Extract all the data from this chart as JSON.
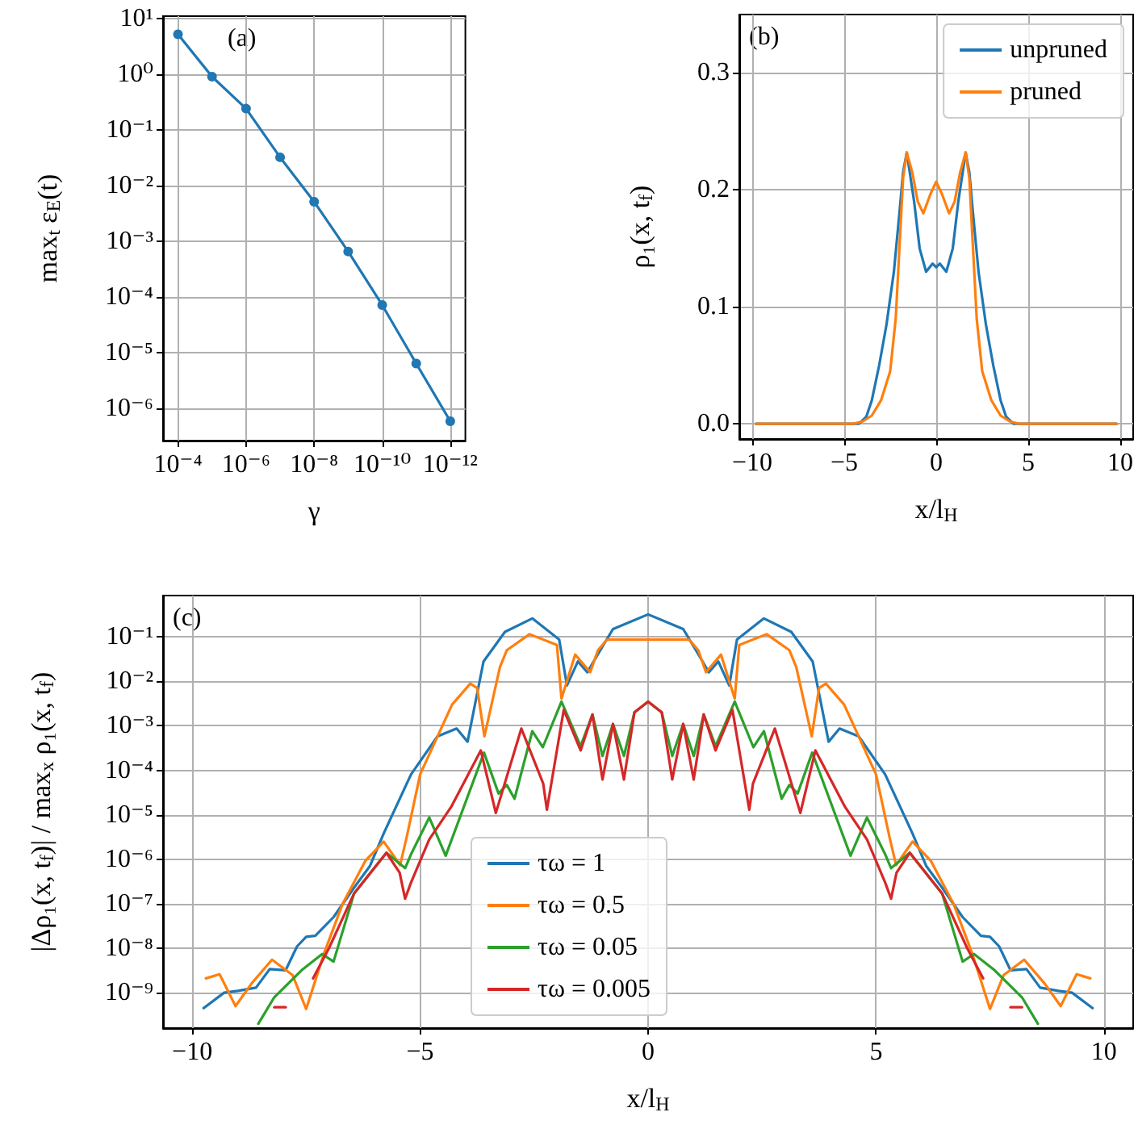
{
  "chart_data": [
    {
      "type": "line",
      "annotations": [
        "(a)"
      ],
      "xlabel": "γ",
      "ylabel": "max$_{t}$ ε$_{E}$(t)",
      "log": "xy",
      "grid": true,
      "marker": "circle",
      "x": [
        0.0001,
        1e-05,
        1e-06,
        1e-07,
        1e-08,
        1e-09,
        1e-10,
        1e-11,
        1e-12
      ],
      "xlim": [
        0.000275,
        3.6e-13
      ],
      "ylim": [
        2.6e-07,
        11
      ],
      "xticks": [
        {
          "value": 0.0001,
          "label": "10⁻⁴"
        },
        {
          "value": 1e-06,
          "label": "10⁻⁶"
        },
        {
          "value": 1e-08,
          "label": "10⁻⁸"
        },
        {
          "value": 1e-10,
          "label": "10⁻¹⁰"
        },
        {
          "value": 1e-12,
          "label": "10⁻¹²"
        }
      ],
      "yticks": [
        {
          "value": 1e-06,
          "label": "10⁻⁶"
        },
        {
          "value": 1e-05,
          "label": "10⁻⁵"
        },
        {
          "value": 0.0001,
          "label": "10⁻⁴"
        },
        {
          "value": 0.001,
          "label": "10⁻³"
        },
        {
          "value": 0.01,
          "label": "10⁻²"
        },
        {
          "value": 0.1,
          "label": "10⁻¹"
        },
        {
          "value": 1,
          "label": "10⁰"
        },
        {
          "value": 10,
          "label": "10¹"
        }
      ],
      "series": [
        {
          "color": "#1f77b4",
          "values": [
            5.2,
            0.9,
            0.24,
            0.032,
            0.0051,
            0.00065,
            7.1e-05,
            6.3e-06,
            5.8e-07
          ]
        }
      ]
    },
    {
      "type": "line",
      "annotations": [
        "(b)"
      ],
      "xlabel": "x/l$_{H}$",
      "ylabel": "ρ₁(x, t$_{f}$)",
      "grid": true,
      "legend": "top right",
      "xlim": [
        -10.7,
        10.7
      ],
      "ylim": [
        -0.013,
        0.35
      ],
      "xticks": [
        {
          "value": -10,
          "label": "−10"
        },
        {
          "value": -5,
          "label": "−5"
        },
        0,
        5,
        10
      ],
      "yticks": [
        {
          "value": 0,
          "label": "0.0"
        },
        0.1,
        0.2,
        0.3
      ],
      "series": [
        {
          "name": "unpruned",
          "color": "#1f77b4",
          "x": [
            -9.8,
            -5,
            -4.2,
            -3.8,
            -3.5,
            -3.1,
            -2.7,
            -2.3,
            -2.0,
            -1.8,
            -1.6,
            -1.2,
            -0.9,
            -0.55,
            -0.2,
            0,
            0.2,
            0.55,
            0.9,
            1.2,
            1.6,
            1.8,
            2.0,
            2.3,
            2.7,
            3.1,
            3.5,
            3.8,
            4.2,
            5,
            9.8
          ],
          "values": [
            0,
            0,
            0,
            0.006,
            0.02,
            0.05,
            0.085,
            0.13,
            0.18,
            0.215,
            0.232,
            0.19,
            0.15,
            0.13,
            0.137,
            0.134,
            0.137,
            0.13,
            0.15,
            0.19,
            0.232,
            0.215,
            0.18,
            0.13,
            0.085,
            0.05,
            0.02,
            0.006,
            0,
            0,
            0
          ]
        },
        {
          "name": "pruned",
          "color": "#ff7f0e",
          "x": [
            -9.8,
            -4.5,
            -4.0,
            -3.5,
            -3.0,
            -2.5,
            -2.2,
            -2.0,
            -1.8,
            -1.6,
            -1.3,
            -1.0,
            -0.7,
            -0.3,
            0,
            0.3,
            0.7,
            1.0,
            1.3,
            1.6,
            1.8,
            2.0,
            2.2,
            2.5,
            3.0,
            3.5,
            4.0,
            4.5,
            9.8
          ],
          "values": [
            0,
            0,
            0.002,
            0.007,
            0.02,
            0.045,
            0.09,
            0.15,
            0.21,
            0.232,
            0.215,
            0.19,
            0.18,
            0.197,
            0.207,
            0.197,
            0.18,
            0.19,
            0.215,
            0.232,
            0.21,
            0.15,
            0.09,
            0.045,
            0.02,
            0.007,
            0.002,
            0,
            0
          ]
        }
      ]
    },
    {
      "type": "line",
      "annotations": [
        "(c)"
      ],
      "xlabel": "x/l$_{H}$",
      "ylabel": "|Δρ₁(x, t$_{f}$)| / max$_{x}$ ρ₁(x, t$_{f}$)",
      "log": "y",
      "grid": true,
      "legend": "bottom",
      "xlim": [
        -10.64,
        10.64
      ],
      "ylim": [
        1.6e-10,
        0.85
      ],
      "xticks": [
        {
          "value": -10,
          "label": "−10"
        },
        {
          "value": -5,
          "label": "−5"
        },
        0,
        5,
        10
      ],
      "yticks": [
        {
          "value": 1e-09,
          "label": "10⁻⁹"
        },
        {
          "value": 1e-08,
          "label": "10⁻⁸"
        },
        {
          "value": 1e-07,
          "label": "10⁻⁷"
        },
        {
          "value": 1e-06,
          "label": "10⁻⁶"
        },
        {
          "value": 1e-05,
          "label": "10⁻⁵"
        },
        {
          "value": 0.0001,
          "label": "10⁻⁴"
        },
        {
          "value": 0.001,
          "label": "10⁻³"
        },
        {
          "value": 0.01,
          "label": "10⁻²"
        },
        {
          "value": 0.1,
          "label": "10⁻¹"
        }
      ],
      "series": [
        {
          "name": "τω = 1",
          "color": "#1f77b4",
          "x": [
            -9.75,
            -9.3,
            -9.0,
            -8.6,
            -8.3,
            -7.95,
            -7.7,
            -7.5,
            -7.3,
            -6.9,
            -6.45,
            -6.1,
            -5.8,
            -5.2,
            -4.62,
            -4.2,
            -3.96,
            -3.61,
            -3.14,
            -2.54,
            -1.95,
            -1.78,
            -1.54,
            -1.33,
            -1.12,
            -0.77,
            0,
            0.77,
            1.12,
            1.33,
            1.54,
            1.78,
            1.95,
            2.54,
            3.14,
            3.61,
            3.96,
            4.2,
            4.62,
            5.2,
            5.8,
            6.1,
            6.45,
            6.9,
            7.3,
            7.5,
            7.7,
            7.95,
            8.3,
            8.6,
            9.0,
            9.3,
            9.75
          ],
          "values": [
            4.5e-10,
            1e-09,
            1.1e-09,
            1.3e-09,
            3.4e-09,
            3.2e-09,
            1.1e-08,
            1.8e-08,
            1.9e-08,
            5e-08,
            2.3e-07,
            7.1e-07,
            3.8e-06,
            8.1e-05,
            0.00058,
            0.00087,
            0.00044,
            0.028,
            0.13,
            0.26,
            0.087,
            0.0081,
            0.028,
            0.016,
            0.038,
            0.15,
            0.32,
            0.15,
            0.038,
            0.016,
            0.028,
            0.0081,
            0.087,
            0.26,
            0.13,
            0.028,
            0.00044,
            0.00087,
            0.00058,
            8.1e-05,
            3.8e-06,
            7.1e-07,
            2.3e-07,
            5e-08,
            1.9e-08,
            1.8e-08,
            1.1e-08,
            3.2e-09,
            3.4e-09,
            1.3e-09,
            1.1e-09,
            1e-09,
            4.5e-10
          ]
        },
        {
          "name": "τω = 0.5",
          "color": "#ff7f0e",
          "x": [
            -9.7,
            -9.4,
            -9.05,
            -8.7,
            -8.25,
            -7.8,
            -7.5,
            -7.1,
            -6.7,
            -6.2,
            -5.8,
            -5.44,
            -5.3,
            -5.0,
            -4.3,
            -3.9,
            -3.75,
            -3.59,
            -3.25,
            -3.1,
            -2.6,
            -2.0,
            -1.9,
            -1.6,
            -1.27,
            -1.1,
            -0.9,
            0,
            0.9,
            1.1,
            1.27,
            1.6,
            1.9,
            2.0,
            2.6,
            3.1,
            3.25,
            3.59,
            3.75,
            3.9,
            4.3,
            5.0,
            5.3,
            5.44,
            5.8,
            6.2,
            6.7,
            7.1,
            7.5,
            7.8,
            8.25,
            8.7,
            9.05,
            9.4,
            9.7
          ],
          "values": [
            2.1e-09,
            2.6e-09,
            5e-10,
            1.6e-09,
            5.5e-09,
            2.5e-09,
            4.3e-10,
            8.1e-09,
            1e-07,
            9.3e-07,
            2.5e-06,
            7.4e-07,
            3e-06,
            8.1e-05,
            0.003,
            0.0089,
            0.0071,
            0.00058,
            0.021,
            0.05,
            0.115,
            0.066,
            0.0041,
            0.04,
            0.016,
            0.05,
            0.087,
            0.087,
            0.087,
            0.05,
            0.016,
            0.04,
            0.0041,
            0.066,
            0.115,
            0.05,
            0.021,
            0.00058,
            0.0071,
            0.0089,
            0.003,
            8.1e-05,
            3e-06,
            7.4e-07,
            2.5e-06,
            9.3e-07,
            1e-07,
            8.1e-09,
            4.3e-10,
            2.5e-09,
            5.5e-09,
            1.6e-09,
            5e-10,
            2.6e-09,
            2.1e-09
          ]
        },
        {
          "name": "τω = 0.05",
          "color": "#2ca02c",
          "x": [
            -8.55,
            -8.2,
            -7.6,
            -7.15,
            -6.9,
            -6.45,
            -5.74,
            -5.33,
            -5.2,
            -4.8,
            -4.44,
            -3.6,
            -3.28,
            -3.1,
            -2.93,
            -2.54,
            -2.31,
            -1.9,
            -1.48,
            -1.22,
            -1.0,
            -0.77,
            -0.53,
            -0.3,
            0,
            0.3,
            0.53,
            0.77,
            1.0,
            1.22,
            1.48,
            1.9,
            2.31,
            2.54,
            2.93,
            3.1,
            3.28,
            3.6,
            4.44,
            4.8,
            5.2,
            5.33,
            5.74,
            6.45,
            6.9,
            7.15,
            7.6,
            8.2,
            8.55
          ],
          "values": [
            2e-10,
            7.9e-10,
            3.2e-09,
            7.4e-09,
            5e-09,
            1.7e-07,
            1.4e-06,
            6.3e-07,
            1.3e-06,
            8.7e-06,
            1.2e-06,
            0.00025,
            3e-05,
            4.7e-05,
            2.3e-05,
            0.00076,
            0.00033,
            0.0035,
            0.00035,
            0.0018,
            0.00021,
            0.0011,
            0.00021,
            0.002,
            0.0035,
            0.002,
            0.00021,
            0.0011,
            0.00021,
            0.0018,
            0.00035,
            0.0035,
            0.00033,
            0.00076,
            2.3e-05,
            4.7e-05,
            3e-05,
            0.00025,
            1.2e-06,
            8.7e-06,
            1.3e-06,
            6.3e-07,
            1.4e-06,
            1.7e-07,
            5e-09,
            7.4e-09,
            3.2e-09,
            7.9e-10,
            2e-10
          ]
        },
        {
          "name": "τω = 0.005",
          "color": "#d62728",
          "x": [
            -7.35,
            -7.0,
            -6.45,
            -5.74,
            -5.45,
            -5.33,
            -5.2,
            -4.8,
            -4.32,
            -3.67,
            -3.34,
            -2.78,
            -2.3,
            -2.22,
            -1.85,
            -1.48,
            -1.22,
            -1.0,
            -0.77,
            -0.53,
            -0.3,
            0,
            0.3,
            0.53,
            0.77,
            1.0,
            1.22,
            1.48,
            1.85,
            2.22,
            2.3,
            2.78,
            3.34,
            3.67,
            4.32,
            4.8,
            5.2,
            5.33,
            5.45,
            5.74,
            6.45,
            7.0,
            7.35
          ],
          "values": [
            2.1e-09,
            1e-08,
            1.7e-07,
            1.4e-06,
            5e-07,
            1.3e-07,
            3e-07,
            2.8e-06,
            1.5e-05,
            0.00028,
            1.1e-05,
            0.00087,
            5e-05,
            1.3e-05,
            0.0023,
            0.00028,
            0.0018,
            6.2e-05,
            0.0011,
            6.2e-05,
            0.002,
            0.0035,
            0.002,
            6.2e-05,
            0.0011,
            6.2e-05,
            0.0018,
            0.00028,
            0.0023,
            1.3e-05,
            5e-05,
            0.00087,
            1.1e-05,
            0.00028,
            1.5e-05,
            2.8e-06,
            3e-07,
            1.3e-07,
            5e-07,
            1.4e-06,
            1.7e-07,
            1e-08,
            2.1e-09
          ]
        },
        {
          "color": "#d62728",
          "x": [
            -8.2,
            -7.95
          ],
          "values": [
            4.7e-10,
            4.7e-10
          ]
        },
        {
          "color": "#d62728",
          "x": [
            7.95,
            8.2
          ],
          "values": [
            4.7e-10,
            4.7e-10
          ]
        }
      ]
    }
  ]
}
